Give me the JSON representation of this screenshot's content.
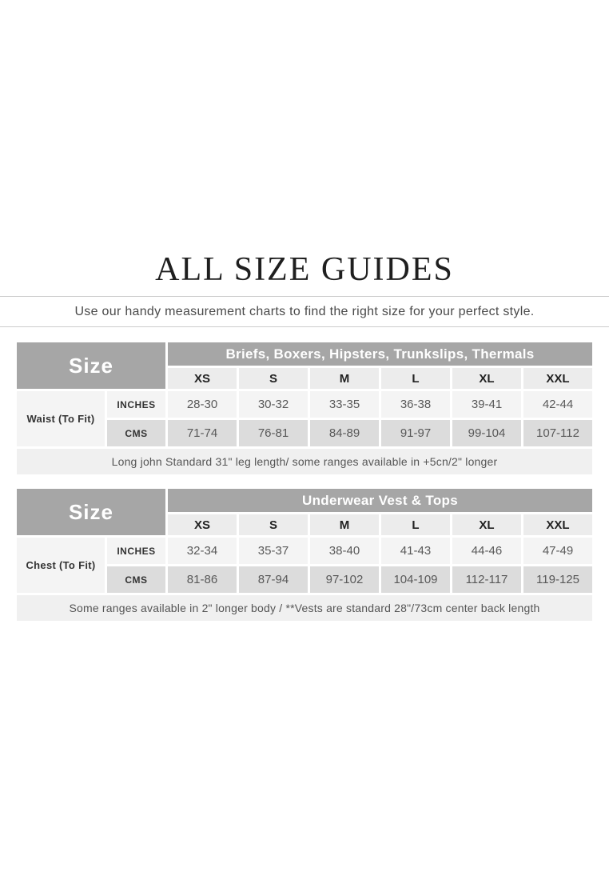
{
  "page": {
    "title": "ALL SIZE GUIDES",
    "subtitle": "Use our handy measurement charts to find the right size for your perfect style."
  },
  "colors": {
    "header_gray": "#a6a6a6",
    "column_header_bg": "#ececec",
    "row_light_bg": "#f4f4f4",
    "row_dark_bg": "#dcdcdc",
    "note_bg": "#f0f0f0",
    "divider_line": "#cccccc"
  },
  "tables": [
    {
      "size_label": "Size",
      "group_title": "Briefs, Boxers, Hipsters, Trunkslips, Thermals",
      "columns": [
        "XS",
        "S",
        "M",
        "L",
        "XL",
        "XXL"
      ],
      "row_label": "Waist (To Fit)",
      "rows": [
        {
          "unit": "INCHES",
          "values": [
            "28-30",
            "30-32",
            "33-35",
            "36-38",
            "39-41",
            "42-44"
          ]
        },
        {
          "unit": "CMS",
          "values": [
            "71-74",
            "76-81",
            "84-89",
            "91-97",
            "99-104",
            "107-112"
          ]
        }
      ],
      "note": "Long john Standard 31\" leg length/ some ranges available in +5cn/2\" longer"
    },
    {
      "size_label": "Size",
      "group_title": "Underwear Vest & Tops",
      "columns": [
        "XS",
        "S",
        "M",
        "L",
        "XL",
        "XXL"
      ],
      "row_label": "Chest (To Fit)",
      "rows": [
        {
          "unit": "INCHES",
          "values": [
            "32-34",
            "35-37",
            "38-40",
            "41-43",
            "44-46",
            "47-49"
          ]
        },
        {
          "unit": "CMS",
          "values": [
            "81-86",
            "87-94",
            "97-102",
            "104-109",
            "112-117",
            "119-125"
          ]
        }
      ],
      "note": "Some ranges available in 2\" longer body / **Vests are standard 28\"/73cm center back length"
    }
  ]
}
